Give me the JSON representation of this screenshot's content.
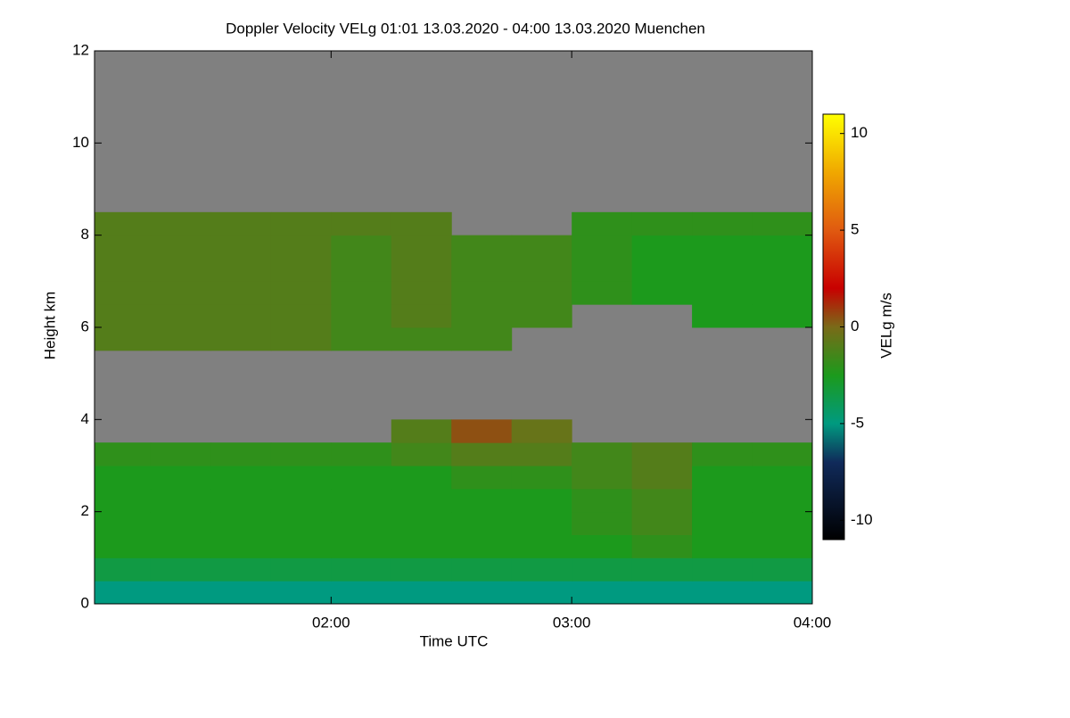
{
  "chart_data": {
    "type": "heatmap",
    "title": "Doppler Velocity VELg   01:01 13.03.2020 - 04:00 13.03.2020 Muenchen",
    "x_label": "Time UTC",
    "y_label": "Height km",
    "colorbar_label": "VELg m/s",
    "background_color": "#808080",
    "x_bins": [
      1.0,
      1.25,
      1.5,
      1.75,
      2.0,
      2.25,
      2.5,
      2.75,
      3.0,
      3.25,
      3.5,
      3.75,
      4.0
    ],
    "y_bins": [
      0,
      0.5,
      1,
      1.5,
      2,
      2.5,
      3,
      3.5,
      4,
      4.5,
      5,
      5.5,
      6,
      6.5,
      7,
      7.5,
      8,
      8.5,
      9,
      9.5,
      10,
      10.5,
      11,
      11.5,
      12
    ],
    "z": [
      [
        -5,
        -5,
        -5,
        -5,
        -5,
        -5,
        -5,
        -5,
        -5,
        -5,
        -5,
        -5
      ],
      [
        -3.5,
        -3.5,
        -3.5,
        -3.5,
        -3.5,
        -3.5,
        -3.5,
        -3.5,
        -3.5,
        -3.5,
        -3.5,
        -3.5
      ],
      [
        -2.5,
        -2.5,
        -2.5,
        -2.5,
        -2.5,
        -2.5,
        -2.5,
        -2.5,
        -2.5,
        -2,
        -2.5,
        -2.5
      ],
      [
        -2.5,
        -2.5,
        -2.5,
        -2.5,
        -2.5,
        -2.5,
        -2.5,
        -2.5,
        -2,
        -1.5,
        -2.5,
        -2.5
      ],
      [
        -2.5,
        -2.5,
        -2.5,
        -2.5,
        -2.5,
        -2.5,
        -2.5,
        -2.5,
        -2,
        -1.5,
        -2.5,
        -2.5
      ],
      [
        -2.5,
        -2.5,
        -2.5,
        -2.5,
        -2.5,
        -2.5,
        -2,
        -2,
        -1.5,
        -1,
        -2.5,
        -2.5
      ],
      [
        -2,
        -2,
        -2,
        -2,
        -2,
        -1.5,
        -1,
        -1,
        -1.5,
        -1,
        -2,
        -2
      ],
      [
        null,
        null,
        null,
        null,
        null,
        -1,
        0.5,
        -0.5,
        null,
        null,
        null,
        null
      ],
      [
        null,
        null,
        null,
        null,
        null,
        null,
        null,
        null,
        null,
        null,
        null,
        null
      ],
      [
        null,
        null,
        null,
        null,
        null,
        null,
        null,
        null,
        null,
        null,
        null,
        null
      ],
      [
        null,
        null,
        null,
        null,
        null,
        null,
        null,
        null,
        null,
        null,
        null,
        null
      ],
      [
        -1,
        -1,
        -1,
        -1,
        -1.5,
        -1.5,
        -1.5,
        null,
        null,
        null,
        null,
        null
      ],
      [
        -1,
        -1,
        -1,
        -1,
        -1.5,
        -1,
        -1.5,
        -1.5,
        null,
        null,
        -2.5,
        -2.5
      ],
      [
        -1,
        -1,
        -1,
        -1,
        -1.5,
        -1,
        -1.5,
        -1.5,
        -2,
        -2.5,
        -2.5,
        -2.5
      ],
      [
        -1,
        -1,
        -1,
        -1,
        -1.5,
        -1,
        -1.5,
        -1.5,
        -2,
        -2.5,
        -2.5,
        -2.5
      ],
      [
        -1,
        -1,
        -1,
        -1,
        -1.5,
        -1,
        -1.5,
        -1.5,
        -2,
        -2.5,
        -2.5,
        -2.5
      ],
      [
        -1,
        -1,
        -1,
        -1,
        -1,
        -1,
        null,
        null,
        -2,
        -2,
        -2,
        -2
      ],
      [
        null,
        null,
        null,
        null,
        null,
        null,
        null,
        null,
        null,
        null,
        null,
        null
      ],
      [
        null,
        null,
        null,
        null,
        null,
        null,
        null,
        null,
        null,
        null,
        null,
        null
      ],
      [
        null,
        null,
        null,
        null,
        null,
        null,
        null,
        null,
        null,
        null,
        null,
        null
      ],
      [
        null,
        null,
        null,
        null,
        null,
        null,
        null,
        null,
        null,
        null,
        null,
        null
      ],
      [
        null,
        null,
        null,
        null,
        null,
        null,
        null,
        null,
        null,
        null,
        null,
        null
      ],
      [
        null,
        null,
        null,
        null,
        null,
        null,
        null,
        null,
        null,
        null,
        null,
        null
      ],
      [
        null,
        null,
        null,
        null,
        null,
        null,
        null,
        null,
        null,
        null,
        null,
        null
      ]
    ],
    "xlim": [
      1.0167,
      4.0
    ],
    "xticks": [
      {
        "value": 2,
        "label": "02:00"
      },
      {
        "value": 3,
        "label": "03:00"
      },
      {
        "value": 4,
        "label": "04:00"
      }
    ],
    "ylim": [
      0,
      12
    ],
    "yticks": [
      0,
      2,
      4,
      6,
      8,
      10,
      12
    ],
    "zlim": [
      -11,
      11
    ],
    "zticks": [
      -10,
      -5,
      0,
      5,
      10
    ],
    "colorscale": [
      [
        -11,
        "#000000"
      ],
      [
        -7,
        "#102a5a"
      ],
      [
        -5,
        "#009a80"
      ],
      [
        -2.5,
        "#1c9a1c"
      ],
      [
        0,
        "#7a6a18"
      ],
      [
        2,
        "#c80000"
      ],
      [
        5,
        "#e05a10"
      ],
      [
        8,
        "#f0a800"
      ],
      [
        11,
        "#ffff00"
      ]
    ]
  }
}
